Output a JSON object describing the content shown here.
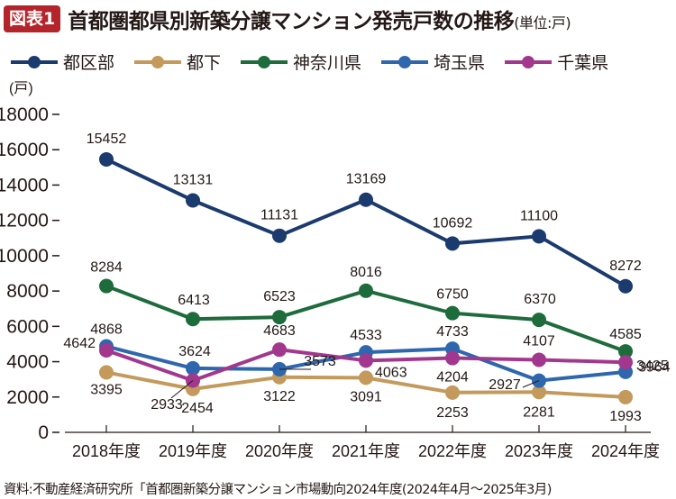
{
  "header": {
    "badge": "図表1",
    "title": "首都圏都県別新築分譲マンション発売戸数の推移",
    "unit": "(単位:戸)"
  },
  "source": "資料:不動産経済研究所「首都圏新築分譲マンション市場動向2024年度(2024年4月〜2025年3月)",
  "chart_data": {
    "type": "line",
    "title": "首都圏都県別新築分譲マンション発売戸数の推移",
    "ylabel": "(戸)",
    "xlabel": "",
    "ylim": [
      0,
      18000
    ],
    "yticks": [
      0,
      2000,
      4000,
      6000,
      8000,
      10000,
      12000,
      14000,
      16000,
      18000
    ],
    "ytick_labels": [
      "0",
      "2000",
      "4000",
      "6000",
      "8000",
      "10000",
      "12000",
      "14000",
      "16000",
      "18000"
    ],
    "grid": false,
    "legend_position": "top",
    "categories": [
      "2018年度",
      "2019年度",
      "2020年度",
      "2021年度",
      "2022年度",
      "2023年度",
      "2024年度"
    ],
    "series": [
      {
        "name": "都区部",
        "color": "#1b3a6e",
        "values": [
          15452,
          13131,
          11131,
          13169,
          10692,
          11100,
          8272
        ]
      },
      {
        "name": "都下",
        "color": "#c49a5c",
        "values": [
          3395,
          2454,
          3122,
          3091,
          2253,
          2281,
          1993
        ]
      },
      {
        "name": "神奈川県",
        "color": "#1e6b3c",
        "values": [
          8284,
          6413,
          6523,
          8016,
          6750,
          6370,
          4585
        ]
      },
      {
        "name": "埼玉県",
        "color": "#2e67ad",
        "values": [
          4868,
          3624,
          3573,
          4533,
          4733,
          2927,
          3425
        ]
      },
      {
        "name": "千葉県",
        "color": "#a2388e",
        "values": [
          4642,
          2933,
          4683,
          4063,
          4204,
          4107,
          3964
        ]
      }
    ]
  }
}
